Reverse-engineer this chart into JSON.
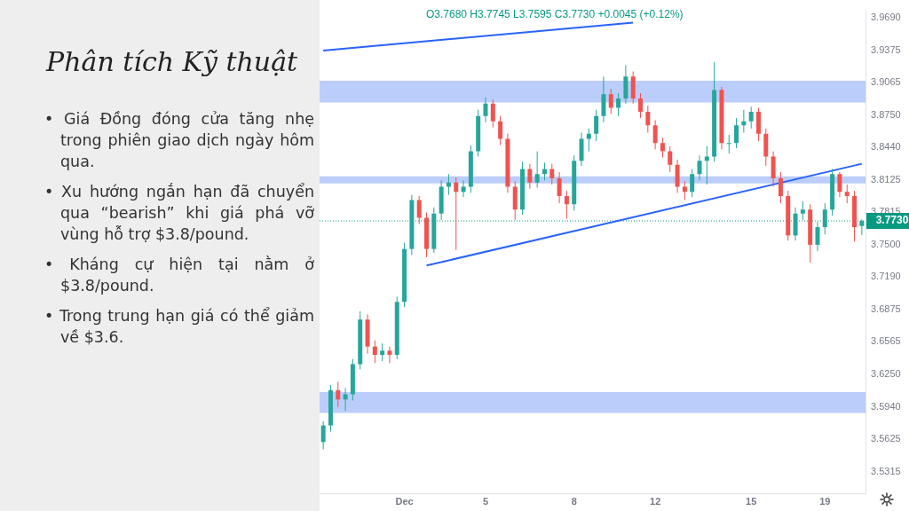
{
  "chart_data": {
    "type": "candlestick",
    "title": "Phân tích Kỹ thuật",
    "subtitle": "O3.7680 H3.7745 L3.7595 C3.7730 +0.0045 (+0.12%)",
    "annotations": [
      "• Giá Đồng đóng cửa tăng nhẹ trong phiên giao dịch ngày hôm qua.",
      "• Xu hướng ngắn hạn đã chuyển qua “bearish” khi giá phá vỡ vùng hỗ trợ $3.8/pound.",
      "• Kháng cự hiện tại nằm ở $3.8/pound.",
      "• Trong trung hạn giá có thể giảm về $3.6."
    ],
    "categories": [
      null,
      null,
      null,
      null,
      null,
      null,
      null,
      null,
      null,
      null,
      null,
      "Dec",
      null,
      null,
      null,
      null,
      null,
      null,
      null,
      null,
      null,
      null,
      "5",
      null,
      null,
      null,
      null,
      null,
      null,
      null,
      null,
      null,
      null,
      null,
      "8",
      null,
      null,
      null,
      null,
      null,
      null,
      null,
      null,
      null,
      null,
      "12",
      null,
      null,
      null,
      null,
      null,
      null,
      null,
      null,
      null,
      null,
      null,
      null,
      "15",
      null,
      null,
      null,
      null,
      null,
      null,
      null,
      null,
      null,
      "19",
      null,
      null,
      null,
      null,
      null
    ],
    "ohlc": [
      [
        3.56,
        3.58,
        3.553,
        3.576
      ],
      [
        3.576,
        3.615,
        3.57,
        3.61
      ],
      [
        3.61,
        3.618,
        3.594,
        3.601
      ],
      [
        3.601,
        3.612,
        3.59,
        3.606
      ],
      [
        3.606,
        3.64,
        3.6,
        3.635
      ],
      [
        3.635,
        3.686,
        3.63,
        3.678
      ],
      [
        3.678,
        3.683,
        3.645,
        3.652
      ],
      [
        3.652,
        3.658,
        3.636,
        3.644
      ],
      [
        3.644,
        3.655,
        3.638,
        3.648
      ],
      [
        3.648,
        3.652,
        3.636,
        3.644
      ],
      [
        3.644,
        3.7,
        3.64,
        3.695
      ],
      [
        3.695,
        3.752,
        3.69,
        3.746
      ],
      [
        3.746,
        3.798,
        3.74,
        3.793
      ],
      [
        3.793,
        3.797,
        3.77,
        3.776
      ],
      [
        3.776,
        3.781,
        3.738,
        3.746
      ],
      [
        3.746,
        3.786,
        3.742,
        3.78
      ],
      [
        3.78,
        3.812,
        3.774,
        3.806
      ],
      [
        3.806,
        3.818,
        3.798,
        3.81
      ],
      [
        3.81,
        3.815,
        3.745,
        3.801
      ],
      [
        3.801,
        3.812,
        3.796,
        3.806
      ],
      [
        3.806,
        3.846,
        3.8,
        3.84
      ],
      [
        3.84,
        3.88,
        3.835,
        3.874
      ],
      [
        3.874,
        3.892,
        3.868,
        3.886
      ],
      [
        3.886,
        3.89,
        3.863,
        3.869
      ],
      [
        3.869,
        3.874,
        3.846,
        3.852
      ],
      [
        3.852,
        3.857,
        3.8,
        3.806
      ],
      [
        3.806,
        3.811,
        3.774,
        3.784
      ],
      [
        3.784,
        3.83,
        3.779,
        3.823
      ],
      [
        3.823,
        3.828,
        3.804,
        3.81
      ],
      [
        3.81,
        3.84,
        3.805,
        3.818
      ],
      [
        3.818,
        3.829,
        3.812,
        3.823
      ],
      [
        3.823,
        3.828,
        3.808,
        3.814
      ],
      [
        3.814,
        3.82,
        3.79,
        3.797
      ],
      [
        3.797,
        3.802,
        3.775,
        3.789
      ],
      [
        3.789,
        3.836,
        3.783,
        3.831
      ],
      [
        3.831,
        3.858,
        3.826,
        3.852
      ],
      [
        3.852,
        3.862,
        3.84,
        3.857
      ],
      [
        3.857,
        3.88,
        3.85,
        3.874
      ],
      [
        3.874,
        3.912,
        3.868,
        3.895
      ],
      [
        3.895,
        3.9,
        3.876,
        3.882
      ],
      [
        3.882,
        3.896,
        3.874,
        3.891
      ],
      [
        3.891,
        3.923,
        3.886,
        3.912
      ],
      [
        3.912,
        3.917,
        3.886,
        3.891
      ],
      [
        3.891,
        3.896,
        3.872,
        3.878
      ],
      [
        3.878,
        3.884,
        3.858,
        3.865
      ],
      [
        3.865,
        3.87,
        3.842,
        3.848
      ],
      [
        3.848,
        3.853,
        3.834,
        3.84
      ],
      [
        3.84,
        3.845,
        3.82,
        3.827
      ],
      [
        3.827,
        3.832,
        3.8,
        3.806
      ],
      [
        3.806,
        3.811,
        3.793,
        3.801
      ],
      [
        3.801,
        3.823,
        3.796,
        3.818
      ],
      [
        3.818,
        3.836,
        3.812,
        3.831
      ],
      [
        3.831,
        3.845,
        3.808,
        3.835
      ],
      [
        3.835,
        3.926,
        3.83,
        3.899
      ],
      [
        3.899,
        3.902,
        3.842,
        3.848
      ],
      [
        3.848,
        3.856,
        3.838,
        3.848
      ],
      [
        3.848,
        3.872,
        3.843,
        3.865
      ],
      [
        3.865,
        3.88,
        3.858,
        3.869
      ],
      [
        3.869,
        3.883,
        3.862,
        3.878
      ],
      [
        3.878,
        3.882,
        3.85,
        3.857
      ],
      [
        3.857,
        3.862,
        3.826,
        3.835
      ],
      [
        3.835,
        3.84,
        3.806,
        3.814
      ],
      [
        3.814,
        3.82,
        3.79,
        3.797
      ],
      [
        3.797,
        3.802,
        3.754,
        3.759
      ],
      [
        3.759,
        3.786,
        3.754,
        3.78
      ],
      [
        3.78,
        3.792,
        3.774,
        3.784
      ],
      [
        3.784,
        3.789,
        3.733,
        3.75
      ],
      [
        3.75,
        3.772,
        3.744,
        3.767
      ],
      [
        3.767,
        3.79,
        3.76,
        3.784
      ],
      [
        3.784,
        3.823,
        3.778,
        3.818
      ],
      [
        3.818,
        3.82,
        3.796,
        3.801
      ],
      [
        3.801,
        3.808,
        3.79,
        3.797
      ],
      [
        3.797,
        3.802,
        3.753,
        3.767
      ],
      [
        3.768,
        3.7745,
        3.7595,
        3.773
      ]
    ],
    "colors": [
      "#26a69a",
      "#26a69a",
      "#ef5350",
      "#26a69a",
      "#26a69a",
      "#26a69a",
      "#ef5350",
      "#ef5350",
      "#26a69a",
      "#ef5350",
      "#26a69a",
      "#26a69a",
      "#26a69a",
      "#ef5350",
      "#ef5350",
      "#26a69a",
      "#26a69a",
      "#26a69a",
      "#ef5350",
      "#26a69a",
      "#26a69a",
      "#26a69a",
      "#26a69a",
      "#ef5350",
      "#ef5350",
      "#ef5350",
      "#ef5350",
      "#26a69a",
      "#ef5350",
      "#26a69a",
      "#26a69a",
      "#ef5350",
      "#ef5350",
      "#ef5350",
      "#26a69a",
      "#26a69a",
      "#26a69a",
      "#26a69a",
      "#26a69a",
      "#ef5350",
      "#26a69a",
      "#26a69a",
      "#ef5350",
      "#ef5350",
      "#ef5350",
      "#ef5350",
      "#ef5350",
      "#ef5350",
      "#ef5350",
      "#ef5350",
      "#26a69a",
      "#26a69a",
      "#26a69a",
      "#26a69a",
      "#ef5350",
      "#26a69a",
      "#26a69a",
      "#26a69a",
      "#26a69a",
      "#ef5350",
      "#ef5350",
      "#ef5350",
      "#ef5350",
      "#ef5350",
      "#26a69a",
      "#26a69a",
      "#ef5350",
      "#26a69a",
      "#26a69a",
      "#26a69a",
      "#ef5350",
      "#ef5350",
      "#ef5350",
      "#26a69a"
    ],
    "series": [
      {
        "type": "line",
        "color": "#2962ff",
        "values": [
          null,
          null,
          null,
          null,
          null,
          null,
          null,
          null,
          null,
          null,
          null,
          null,
          null,
          null,
          3.73,
          null,
          null,
          null,
          null,
          null,
          null,
          null,
          null,
          null,
          null,
          null,
          null,
          null,
          null,
          null,
          null,
          null,
          null,
          null,
          null,
          null,
          null,
          null,
          null,
          null,
          null,
          null,
          null,
          null,
          null,
          null,
          null,
          null,
          null,
          null,
          null,
          null,
          null,
          null,
          null,
          null,
          null,
          null,
          null,
          null,
          null,
          null,
          null,
          null,
          null,
          null,
          null,
          null,
          null,
          null,
          null,
          null,
          null,
          3.828
        ]
      },
      {
        "type": "line",
        "color": "#2962ff",
        "values": [
          3.937,
          null,
          null,
          null,
          null,
          null,
          null,
          null,
          null,
          null,
          null,
          null,
          null,
          null,
          null,
          null,
          null,
          null,
          null,
          null,
          null,
          null,
          null,
          null,
          null,
          null,
          null,
          null,
          null,
          null,
          null,
          null,
          null,
          null,
          null,
          null,
          null,
          null,
          null,
          null,
          null,
          null,
          3.964,
          null,
          null,
          null,
          null,
          null,
          null,
          null,
          null,
          null,
          null,
          null,
          null,
          null,
          null,
          null,
          null,
          null,
          null,
          null,
          null,
          null,
          null,
          null,
          null,
          null,
          null,
          null,
          null,
          null,
          null,
          null
        ]
      }
    ],
    "bands": [
      {
        "axis": "y",
        "from": 3.887,
        "to": 3.908,
        "color": "#bbcdfb"
      },
      {
        "axis": "y",
        "from": 3.809,
        "to": 3.816,
        "color": "#bbcdfb"
      },
      {
        "axis": "y",
        "from": 3.588,
        "to": 3.608,
        "color": "#bbcdfb"
      }
    ],
    "ref_lines": [
      {
        "axis": "y",
        "value": 3.773,
        "label": "3.7730",
        "color": "#089981",
        "line_style": "dotted"
      }
    ],
    "ylim": [
      3.51,
      3.975
    ],
    "yticks": [
      {
        "value": 3.969,
        "label": "3.9690"
      },
      3.9375,
      {
        "value": 3.9065,
        "label": "3.9065"
      },
      {
        "value": 3.875,
        "label": "3.8750"
      },
      {
        "value": 3.844,
        "label": "3.8440"
      },
      3.8125,
      3.7815,
      {
        "value": 3.75,
        "label": "3.7500"
      },
      {
        "value": 3.719,
        "label": "3.7190"
      },
      3.6875,
      3.6565,
      {
        "value": 3.625,
        "label": "3.6250"
      },
      {
        "value": 3.594,
        "label": "3.5940"
      },
      3.5625,
      3.5315
    ],
    "grid": false,
    "legend": false
  }
}
